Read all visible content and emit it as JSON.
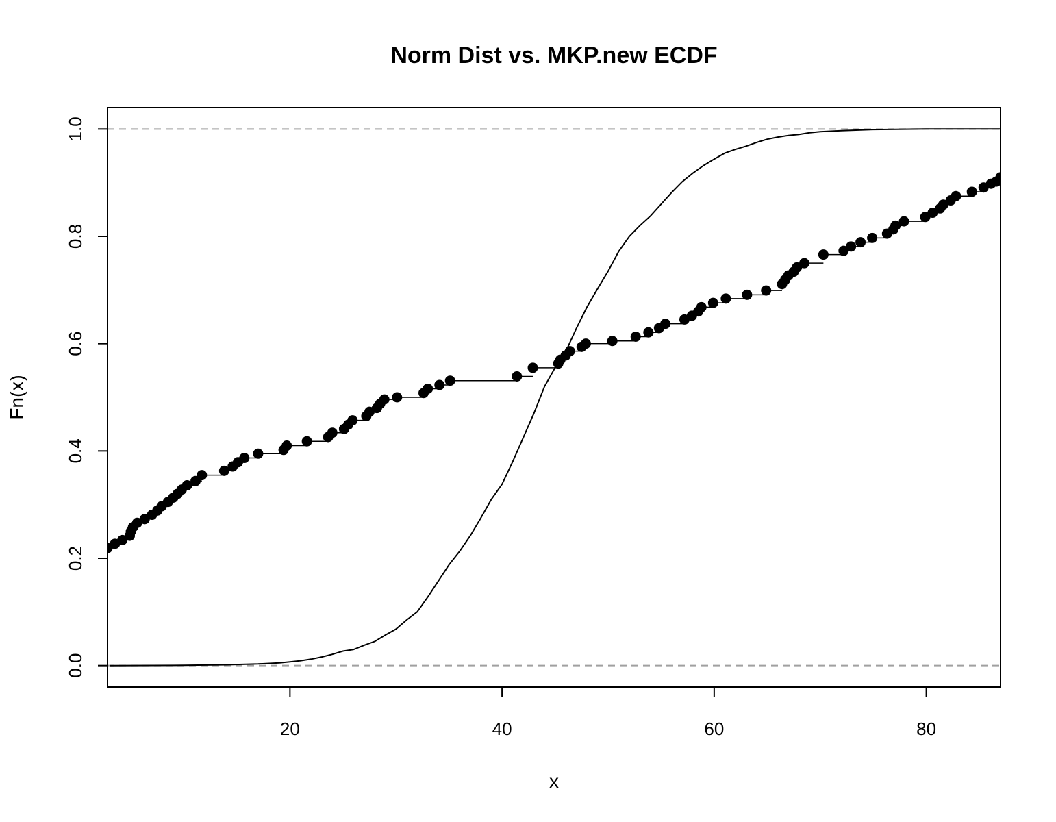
{
  "chart_data": {
    "type": "line",
    "title": "Norm Dist vs. MKP.new ECDF",
    "xlabel": "x",
    "ylabel": "Fn(x)",
    "xlim": [
      2.8,
      87
    ],
    "ylim": [
      -0.04,
      1.04
    ],
    "x_ticks": [
      20,
      40,
      60,
      80
    ],
    "x_tick_labels": [
      "20",
      "40",
      "60",
      "80"
    ],
    "y_ticks": [
      0.0,
      0.2,
      0.4,
      0.6,
      0.8,
      1.0
    ],
    "y_tick_labels": [
      "0.0",
      "0.2",
      "0.4",
      "0.6",
      "0.8",
      "1.0"
    ],
    "reference_lines": [
      0,
      1
    ],
    "legend": "none",
    "series": [
      {
        "style": "step-points",
        "x": [
          2.8,
          3.5,
          4.2,
          4.9,
          5.0,
          5.2,
          5.6,
          6.3,
          7.0,
          7.5,
          7.9,
          8.5,
          9.0,
          9.4,
          9.8,
          10.3,
          11.1,
          11.7,
          13.8,
          14.6,
          15.1,
          15.7,
          17.0,
          19.4,
          19.7,
          21.6,
          23.6,
          24.0,
          25.1,
          25.5,
          25.9,
          27.2,
          27.5,
          28.2,
          28.5,
          28.9,
          30.1,
          32.6,
          33.0,
          34.1,
          35.1,
          41.4,
          42.9,
          45.3,
          45.5,
          46.0,
          46.4,
          47.5,
          47.9,
          50.4,
          52.6,
          53.8,
          54.8,
          55.4,
          57.2,
          57.9,
          58.5,
          58.8,
          59.9,
          61.1,
          63.1,
          64.9,
          66.4,
          66.7,
          67.0,
          67.5,
          67.8,
          68.5,
          70.3,
          72.2,
          72.9,
          73.8,
          74.9,
          76.3,
          76.9,
          77.1,
          77.9,
          79.9,
          80.6,
          81.3,
          81.6,
          82.3,
          82.8,
          84.3,
          85.4,
          86.1,
          86.6,
          87.0
        ],
        "y": [
          0.219,
          0.227,
          0.234,
          0.242,
          0.25,
          0.258,
          0.266,
          0.273,
          0.281,
          0.289,
          0.297,
          0.305,
          0.313,
          0.32,
          0.328,
          0.336,
          0.344,
          0.355,
          0.363,
          0.371,
          0.379,
          0.387,
          0.395,
          0.402,
          0.41,
          0.418,
          0.426,
          0.434,
          0.441,
          0.449,
          0.457,
          0.465,
          0.473,
          0.48,
          0.488,
          0.496,
          0.5,
          0.508,
          0.516,
          0.523,
          0.531,
          0.539,
          0.555,
          0.563,
          0.57,
          0.578,
          0.586,
          0.594,
          0.6,
          0.605,
          0.613,
          0.621,
          0.629,
          0.637,
          0.645,
          0.652,
          0.66,
          0.668,
          0.676,
          0.684,
          0.691,
          0.699,
          0.711,
          0.719,
          0.727,
          0.734,
          0.742,
          0.75,
          0.766,
          0.773,
          0.781,
          0.789,
          0.797,
          0.805,
          0.813,
          0.82,
          0.828,
          0.836,
          0.844,
          0.852,
          0.859,
          0.867,
          0.875,
          0.883,
          0.891,
          0.898,
          0.902,
          0.91
        ]
      },
      {
        "style": "line",
        "x": [
          3,
          10,
          14,
          17,
          19,
          20,
          21,
          22,
          23,
          24,
          25,
          26,
          27,
          28,
          29,
          30,
          31,
          32,
          33,
          34,
          35,
          36,
          37,
          38,
          39,
          40,
          41,
          42,
          43,
          44,
          45,
          46,
          47,
          48,
          49,
          50,
          51,
          52,
          53,
          54,
          55,
          56,
          57,
          58,
          59,
          60,
          61,
          62,
          63,
          64,
          65,
          66,
          67,
          68,
          69,
          70,
          72,
          75,
          80,
          87
        ],
        "y": [
          0.0,
          0.0005,
          0.0015,
          0.003,
          0.005,
          0.007,
          0.009,
          0.012,
          0.016,
          0.021,
          0.027,
          0.03,
          0.038,
          0.045,
          0.057,
          0.068,
          0.085,
          0.1,
          0.128,
          0.158,
          0.188,
          0.213,
          0.242,
          0.275,
          0.31,
          0.338,
          0.38,
          0.425,
          0.47,
          0.52,
          0.555,
          0.585,
          0.628,
          0.668,
          0.702,
          0.735,
          0.772,
          0.8,
          0.82,
          0.838,
          0.86,
          0.882,
          0.902,
          0.918,
          0.932,
          0.944,
          0.955,
          0.962,
          0.968,
          0.975,
          0.981,
          0.985,
          0.988,
          0.99,
          0.993,
          0.995,
          0.997,
          0.999,
          1.0,
          1.0
        ]
      }
    ]
  }
}
